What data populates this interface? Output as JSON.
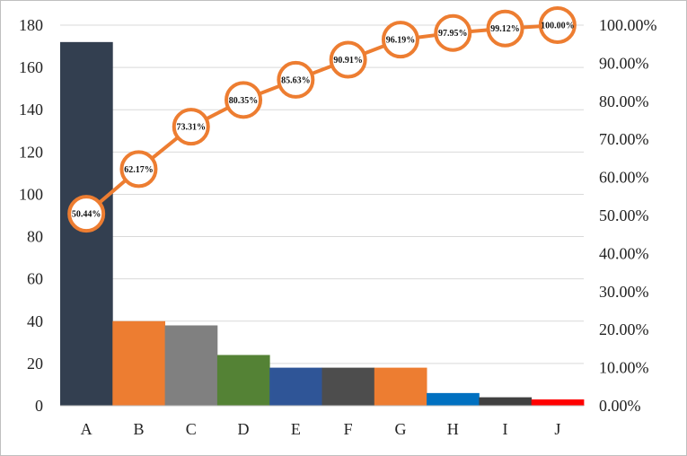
{
  "chart_data": {
    "type": "bar",
    "categories": [
      "A",
      "B",
      "C",
      "D",
      "E",
      "F",
      "G",
      "H",
      "I",
      "J"
    ],
    "series": [
      {
        "values": [
          172,
          40,
          38,
          24,
          18,
          18,
          18,
          6,
          4,
          3
        ],
        "colors": [
          "#333f50",
          "#ed7d31",
          "#808080",
          "#548235",
          "#2f5597",
          "#4d4d4d",
          "#ed7d31",
          "#0070c0",
          "#404040",
          "#ff0000"
        ]
      },
      {
        "type": "line",
        "axis": "right",
        "color": "#ed7d31",
        "values": [
          50.44,
          62.17,
          73.31,
          80.35,
          85.63,
          90.91,
          96.19,
          97.95,
          99.12,
          100.0
        ],
        "labels": [
          "50.44%",
          "62.17%",
          "73.31%",
          "80.35%",
          "85.63%",
          "90.91%",
          "96.19%",
          "97.95%",
          "99.12%",
          "100.00%"
        ]
      }
    ],
    "ylim": [
      0,
      180
    ],
    "y_ticks": [
      "0",
      "20",
      "40",
      "60",
      "80",
      "100",
      "120",
      "140",
      "160",
      "180"
    ],
    "y2lim": [
      0,
      100
    ],
    "y2_ticks": [
      "0.00%",
      "10.00%",
      "20.00%",
      "30.00%",
      "40.00%",
      "50.00%",
      "60.00%",
      "70.00%",
      "80.00%",
      "90.00%",
      "100.00%"
    ],
    "grid": true,
    "title": "",
    "xlabel": "",
    "ylabel": ""
  }
}
